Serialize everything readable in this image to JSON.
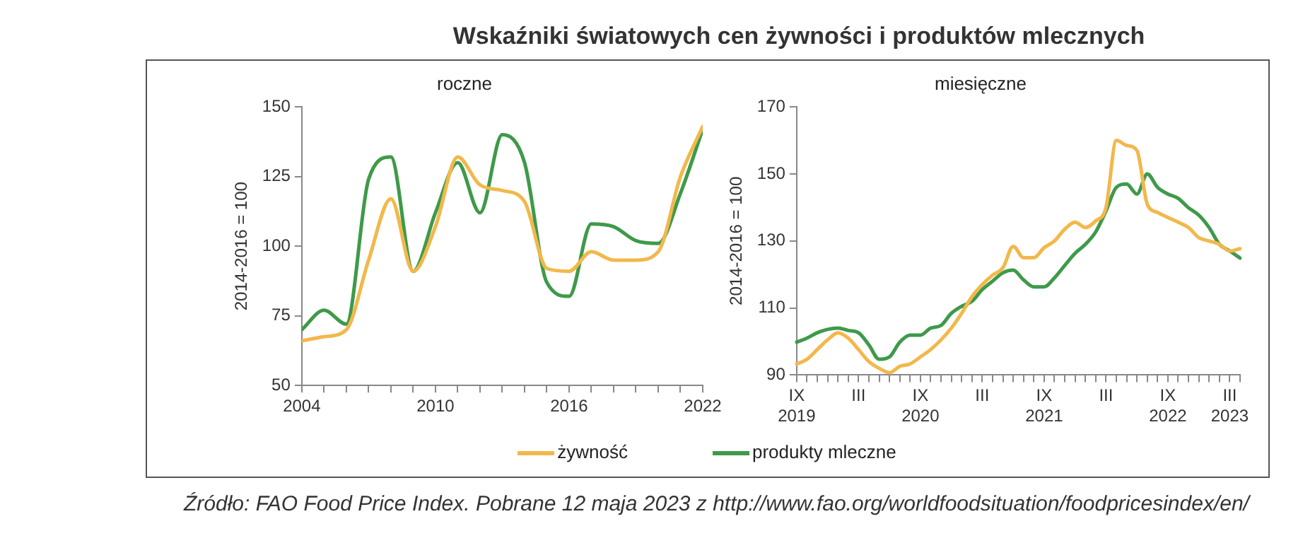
{
  "chart_data": [
    {
      "type": "line",
      "title": "Wskaźniki światowych cen żywności i produktów mlecznych",
      "subtitle": "roczne",
      "ylabel": "2014-2016 = 100",
      "x": [
        2004,
        2005,
        2006,
        2007,
        2008,
        2009,
        2010,
        2011,
        2012,
        2013,
        2014,
        2015,
        2016,
        2017,
        2018,
        2019,
        2020,
        2021,
        2022
      ],
      "series": [
        {
          "name": "żywność",
          "color": "#f2b84b",
          "values": [
            66,
            67.5,
            70,
            95,
            117,
            91,
            107,
            132,
            122,
            120,
            116,
            92,
            91,
            98,
            95,
            95,
            98,
            125,
            143
          ]
        },
        {
          "name": "produkty mleczne",
          "color": "#3e9a4a",
          "values": [
            70,
            77,
            72,
            124,
            132,
            91,
            112,
            130,
            112,
            140,
            130,
            87,
            82,
            108,
            107,
            102,
            101,
            119,
            142
          ]
        }
      ],
      "xlim": [
        2004,
        2022
      ],
      "xticks": [
        2004,
        {
          "value": 2005,
          "label": null
        },
        {
          "value": 2006,
          "label": null
        },
        {
          "value": 2007,
          "label": null
        },
        {
          "value": 2008,
          "label": null
        },
        {
          "value": 2009,
          "label": null
        },
        2010,
        {
          "value": 2011,
          "label": null
        },
        {
          "value": 2012,
          "label": null
        },
        {
          "value": 2013,
          "label": null
        },
        {
          "value": 2014,
          "label": null
        },
        {
          "value": 2015,
          "label": null
        },
        2016,
        {
          "value": 2017,
          "label": null
        },
        {
          "value": 2018,
          "label": null
        },
        {
          "value": 2019,
          "label": null
        },
        {
          "value": 2020,
          "label": null
        },
        {
          "value": 2021,
          "label": null
        },
        2022
      ],
      "ylim": [
        50,
        150
      ],
      "yticks": [
        50,
        75,
        100,
        125,
        150
      ],
      "grid": false,
      "legend": "bottom",
      "marker": "none",
      "line_style": "solid",
      "annotations": [
        "Źródło: FAO Food Price Index. Pobrane 12 maja 2023 z http://www.fao.org/worldfoodsituation/foodpricesindex/en/"
      ]
    },
    {
      "type": "line",
      "subtitle": "miesięczne",
      "ylabel": "2014-2016 = 100",
      "categories": [
        "IX 2019",
        null,
        null,
        null,
        null,
        null,
        "III",
        null,
        null,
        null,
        null,
        null,
        "IX 2020",
        null,
        null,
        null,
        null,
        null,
        "III",
        null,
        null,
        null,
        null,
        null,
        "IX 2021",
        null,
        null,
        null,
        null,
        null,
        "III",
        null,
        null,
        null,
        null,
        null,
        "IX 2022",
        null,
        null,
        null,
        null,
        null,
        "III 2023",
        null
      ],
      "series": [
        {
          "color": "#f2b84b",
          "values": [
            93.3,
            94.7,
            97.6,
            100.5,
            102.6,
            101,
            97.6,
            94,
            92,
            90.7,
            92.6,
            93.3,
            95.4,
            97.6,
            100.5,
            104,
            108.4,
            113.4,
            117,
            119.8,
            122,
            128.4,
            125,
            125,
            128,
            130,
            133.5,
            135.6,
            134,
            136,
            140,
            160,
            158.5,
            157,
            141,
            138.5,
            137,
            135.6,
            134,
            131,
            130,
            129,
            127,
            127.7
          ]
        },
        {
          "color": "#3e9a4a",
          "values": [
            99.8,
            101,
            102.6,
            103.6,
            104,
            103.3,
            102.6,
            99,
            94.7,
            95.4,
            99.8,
            101.9,
            101.9,
            104,
            104.8,
            108.4,
            110.5,
            112,
            115.5,
            118,
            120.5,
            121.3,
            118.4,
            116.3,
            116.3,
            119,
            122.7,
            126.3,
            129,
            132.7,
            139,
            146,
            147,
            144,
            150,
            146,
            144,
            142.7,
            139.9,
            137.7,
            134,
            129,
            127,
            124.9
          ]
        }
      ],
      "ylim": [
        90,
        170
      ],
      "yticks": [
        90,
        110,
        130,
        150,
        170
      ],
      "grid": false,
      "marker": "none",
      "line_style": "solid"
    }
  ]
}
